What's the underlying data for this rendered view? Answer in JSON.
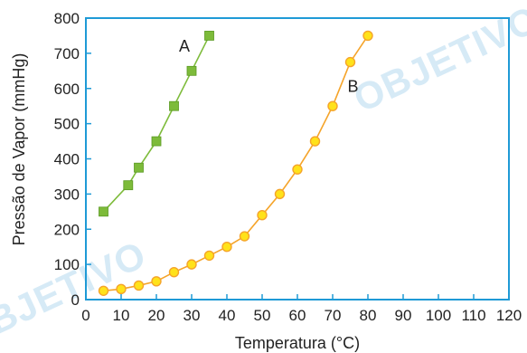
{
  "watermark": "OBJETIVO",
  "chart_data": {
    "type": "line",
    "xlabel": "Temperatura (°C)",
    "ylabel": "Pressão de Vapor (mmHg)",
    "xlim": [
      0,
      120
    ],
    "ylim": [
      0,
      800
    ],
    "xticks": [
      0,
      10,
      20,
      30,
      40,
      50,
      60,
      70,
      80,
      90,
      100,
      110,
      120
    ],
    "yticks": [
      0,
      100,
      200,
      300,
      400,
      500,
      600,
      700,
      800
    ],
    "grid": false,
    "axis_color": "#1f9ad6",
    "series": [
      {
        "name": "A",
        "marker": "square",
        "color": "#7dbb3a",
        "x": [
          5,
          12,
          15,
          20,
          25,
          30,
          35
        ],
        "y": [
          250,
          325,
          375,
          450,
          550,
          650,
          750
        ]
      },
      {
        "name": "B",
        "marker": "circle",
        "color": "#f5a42a",
        "marker_fill": "#ffe21a",
        "x": [
          5,
          10,
          15,
          20,
          25,
          30,
          35,
          40,
          45,
          50,
          55,
          60,
          65,
          70,
          75,
          80
        ],
        "y": [
          25,
          30,
          40,
          52,
          78,
          100,
          125,
          150,
          180,
          240,
          300,
          370,
          450,
          550,
          675,
          750
        ]
      }
    ]
  }
}
